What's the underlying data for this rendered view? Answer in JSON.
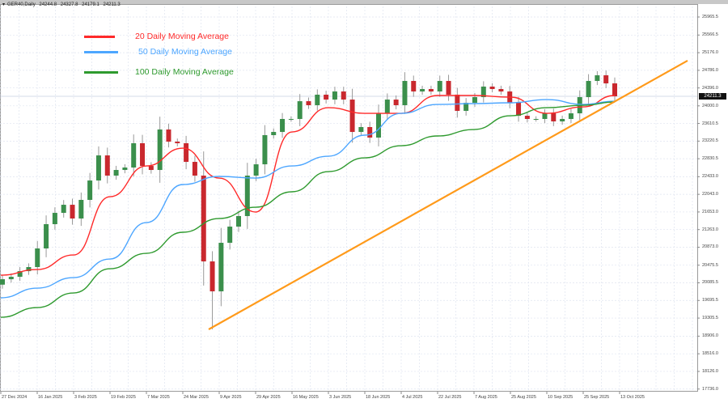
{
  "header": {
    "symbol": "GER40,Daily",
    "open": "24244.8",
    "high": "24327.8",
    "low": "24179.1",
    "close": "24211.3"
  },
  "legend": [
    {
      "label": "20 Daily Moving Average",
      "color": "#ff2a2a"
    },
    {
      "label": "50 Daily Moving Average",
      "color": "#4da6ff"
    },
    {
      "label": "100 Daily Moving Average",
      "color": "#2e9a2e"
    }
  ],
  "current_price_label": "24211.3",
  "chart_data": {
    "type": "candlestick",
    "title": "",
    "y_tick_labels": [
      "25965.5",
      "25566.5",
      "25176.0",
      "24786.0",
      "24396.0",
      "24000.0",
      "23610.5",
      "23220.5",
      "22830.5",
      "22433.0",
      "22043.0",
      "21653.0",
      "21263.0",
      "20873.0",
      "20475.5",
      "20085.5",
      "19695.5",
      "19305.5",
      "18906.0",
      "18516.0",
      "18126.0",
      "17736.0"
    ],
    "ylim": [
      17736.0,
      25965.5
    ],
    "x_tick_labels": [
      "27 Dec 2024",
      "16 Jan 2025",
      "3 Feb 2025",
      "19 Feb 2025",
      "7 Mar 2025",
      "24 Mar 2025",
      "9 Apr 2025",
      "29 Apr 2025",
      "16 May 2025",
      "3 Jun 2025",
      "18 Jun 2025",
      "4 Jul 2025",
      "22 Jul 2025",
      "7 Aug 2025",
      "25 Aug 2025",
      "10 Sep 2025",
      "25 Sep 2025",
      "13 Oct 2025"
    ],
    "grid": true,
    "legend_position": "top-left",
    "colors": {
      "up": "#3b8f4c",
      "down": "#c9282e",
      "trendline": "#ff9a1a"
    },
    "closes": [
      20165,
      20219,
      20344,
      20434,
      20846,
      21383,
      21633,
      21812,
      21508,
      21920,
      22349,
      22904,
      22457,
      22582,
      22636,
      23173,
      22671,
      22582,
      23477,
      23208,
      23173,
      22761,
      22457,
      20559,
      19897,
      20971,
      21329,
      21562,
      22457,
      22707,
      23352,
      23423,
      23710,
      23710,
      24103,
      24014,
      24247,
      24139,
      24318,
      24139,
      23423,
      23531,
      23298,
      23835,
      24139,
      24014,
      24551,
      24318,
      24372,
      24318,
      24551,
      24247,
      23889,
      24068,
      24193,
      24426,
      24372,
      24318,
      24068,
      23781,
      23710,
      23710,
      23835,
      23656,
      23710,
      23835,
      24193,
      24551,
      24676,
      24497,
      24211
    ],
    "moving_averages_at_ticks": {
      "ma20": [
        20255,
        20380,
        20702,
        21991,
        22671,
        23065,
        22403,
        21651,
        23423,
        23960,
        23835,
        23835,
        24229,
        24229,
        24193,
        23835,
        23978,
        24229
      ],
      "ma50": [
        19754,
        19968,
        20201,
        20613,
        21418,
        22260,
        22439,
        22403,
        22671,
        22886,
        23352,
        23835,
        24032,
        24050,
        24068,
        24139,
        24032,
        24103
      ],
      "ma100": [
        19324,
        19539,
        19861,
        20398,
        20738,
        21204,
        21508,
        21758,
        22099,
        22546,
        22850,
        23119,
        23334,
        23477,
        23781,
        23960,
        24014,
        24085
      ]
    },
    "trendline": {
      "start_price": 19056,
      "end_price": 25000
    }
  }
}
